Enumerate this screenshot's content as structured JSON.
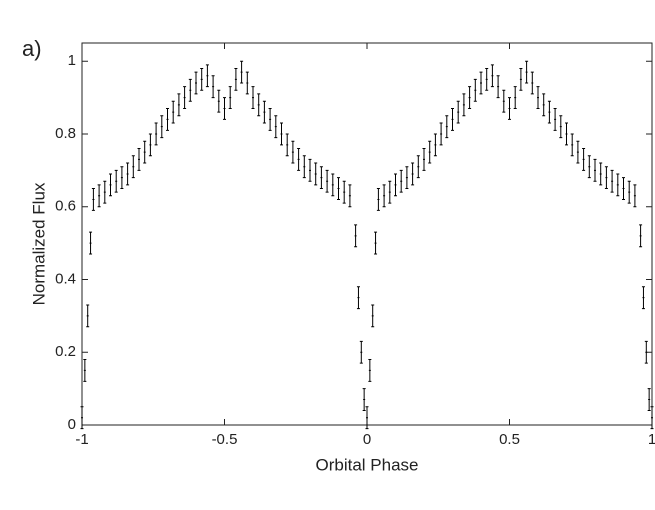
{
  "chart_data": {
    "type": "errorbar",
    "annotation": "a)",
    "xlabel": "Orbital Phase",
    "ylabel": "Normalized Flux",
    "xlim": [
      -1,
      1
    ],
    "ylim": [
      0,
      1.05
    ],
    "xticks": [
      -1,
      -0.5,
      0,
      0.5,
      1
    ],
    "yticks": [
      0,
      0.2,
      0.4,
      0.6,
      0.8,
      1
    ],
    "color": "#000000",
    "yerr": 0.03,
    "x": [
      -1,
      -0.99,
      -0.98,
      -0.97,
      -0.96,
      -0.94,
      -0.92,
      -0.9,
      -0.88,
      -0.86,
      -0.84,
      -0.82,
      -0.8,
      -0.78,
      -0.76,
      -0.74,
      -0.72,
      -0.7,
      -0.68,
      -0.66,
      -0.64,
      -0.62,
      -0.6,
      -0.58,
      -0.56,
      -0.54,
      -0.52,
      -0.5,
      -0.48,
      -0.46,
      -0.44,
      -0.42,
      -0.4,
      -0.38,
      -0.36,
      -0.34,
      -0.32,
      -0.3,
      -0.28,
      -0.26,
      -0.24,
      -0.22,
      -0.2,
      -0.18,
      -0.16,
      -0.14,
      -0.12,
      -0.1,
      -0.08,
      -0.06,
      -0.04,
      -0.03,
      -0.02,
      -0.01,
      0,
      0.01,
      0.02,
      0.03,
      0.04,
      0.06,
      0.08,
      0.1,
      0.12,
      0.14,
      0.16,
      0.18,
      0.2,
      0.22,
      0.24,
      0.26,
      0.28,
      0.3,
      0.32,
      0.34,
      0.36,
      0.38,
      0.4,
      0.42,
      0.44,
      0.46,
      0.48,
      0.5,
      0.52,
      0.54,
      0.56,
      0.58,
      0.6,
      0.62,
      0.64,
      0.66,
      0.68,
      0.7,
      0.72,
      0.74,
      0.76,
      0.78,
      0.8,
      0.82,
      0.84,
      0.86,
      0.88,
      0.9,
      0.92,
      0.94,
      0.96,
      0.97,
      0.98,
      0.99,
      1
    ],
    "values": [
      0.02,
      0.15,
      0.3,
      0.5,
      0.62,
      0.63,
      0.64,
      0.66,
      0.67,
      0.68,
      0.69,
      0.71,
      0.73,
      0.75,
      0.77,
      0.8,
      0.82,
      0.84,
      0.86,
      0.88,
      0.9,
      0.92,
      0.94,
      0.95,
      0.96,
      0.93,
      0.89,
      0.87,
      0.9,
      0.95,
      0.97,
      0.94,
      0.9,
      0.88,
      0.86,
      0.84,
      0.82,
      0.8,
      0.77,
      0.75,
      0.73,
      0.71,
      0.7,
      0.69,
      0.68,
      0.67,
      0.66,
      0.65,
      0.64,
      0.63,
      0.52,
      0.35,
      0.2,
      0.07,
      0.02,
      0.15,
      0.3,
      0.5,
      0.62,
      0.63,
      0.64,
      0.66,
      0.67,
      0.68,
      0.69,
      0.71,
      0.73,
      0.75,
      0.77,
      0.8,
      0.82,
      0.84,
      0.86,
      0.88,
      0.9,
      0.92,
      0.94,
      0.95,
      0.96,
      0.93,
      0.89,
      0.87,
      0.9,
      0.95,
      0.97,
      0.94,
      0.9,
      0.88,
      0.86,
      0.84,
      0.82,
      0.8,
      0.77,
      0.75,
      0.73,
      0.71,
      0.7,
      0.69,
      0.68,
      0.67,
      0.66,
      0.65,
      0.64,
      0.63,
      0.52,
      0.35,
      0.2,
      0.07,
      0.02
    ]
  }
}
